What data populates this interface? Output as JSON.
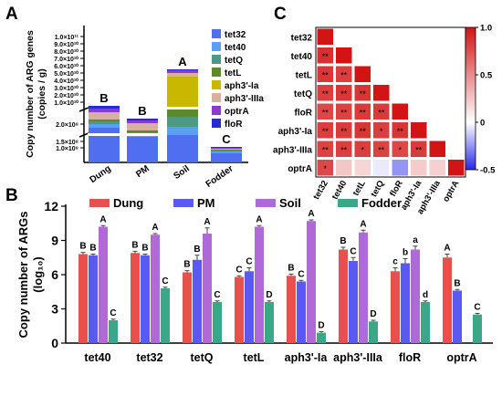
{
  "chart_data": [
    {
      "panel": "A",
      "type": "bar",
      "stacked": true,
      "ylabel_lines": [
        "Copy number of ARG genes",
        "(copies / g)"
      ],
      "categories": [
        "Dung",
        "PM",
        "Soil",
        "Fodder"
      ],
      "ytick_labels_lower": [
        "1.0×10⁸",
        "1.5×10⁸",
        "2.0×10⁸"
      ],
      "ytick_labels_upper": [
        "1.0×10¹⁰",
        "2.0×10¹⁰",
        "3.0×10¹⁰",
        "4.0×10¹⁰",
        "5.0×10¹⁰",
        "6.0×10¹⁰",
        "7.0×10¹⁰",
        "8.0×10¹⁰",
        "9.0×10¹⁰",
        "1.0×10¹¹"
      ],
      "group_letters": [
        "B",
        "B",
        "A",
        "C"
      ],
      "legend": [
        "tet32",
        "tet40",
        "tetQ",
        "tetL",
        "aph3'-Ia",
        "aph3'-IIIa",
        "optrA",
        "floR"
      ],
      "colors": [
        "#4f6ef0",
        "#5aa0f0",
        "#4c9a86",
        "#5c8a2a",
        "#c8b800",
        "#d8b0a0",
        "#8a3ad0",
        "#2a2ad0"
      ],
      "stack_heights": [
        [
          38,
          4,
          3,
          2,
          0,
          8,
          4,
          3
        ],
        [
          28,
          3,
          2,
          2,
          0,
          8,
          3,
          2
        ],
        [
          30,
          9,
          11,
          10,
          34,
          4,
          3,
          1
        ],
        [
          10,
          2,
          1,
          1,
          0,
          1,
          1,
          1
        ]
      ]
    },
    {
      "panel": "C",
      "type": "heatmap",
      "genes": [
        "tet32",
        "tet40",
        "tetL",
        "tetQ",
        "floR",
        "aph3'-Ia",
        "aph3'-IIIa",
        "optrA"
      ],
      "colorbar_ticks": [
        "1.0",
        "0.5",
        "0",
        "-0.5"
      ],
      "colorbar_range": [
        -0.5,
        1.0
      ],
      "values": [
        [
          1.0
        ],
        [
          0.88,
          1.0
        ],
        [
          0.85,
          0.82,
          1.0
        ],
        [
          0.82,
          0.85,
          0.86,
          1.0
        ],
        [
          0.78,
          0.8,
          0.84,
          0.84,
          1.0
        ],
        [
          0.82,
          0.84,
          0.86,
          0.82,
          0.86,
          1.0
        ],
        [
          0.8,
          0.82,
          0.82,
          0.8,
          0.78,
          0.84,
          1.0
        ],
        [
          0.78,
          0.24,
          0.18,
          -0.05,
          -0.25,
          0.22,
          0.2,
          1.0
        ]
      ],
      "marks": [
        [
          ""
        ],
        [
          "**",
          ""
        ],
        [
          "**",
          "**",
          ""
        ],
        [
          "**",
          "**",
          "**",
          ""
        ],
        [
          "**",
          "**",
          "**",
          "**",
          ""
        ],
        [
          "**",
          "**",
          "**",
          "*",
          "**",
          ""
        ],
        [
          "**",
          "**",
          "*",
          "**",
          "*",
          "**",
          ""
        ],
        [
          "*",
          "",
          "",
          "",
          "",
          "",
          "",
          ""
        ]
      ]
    },
    {
      "panel": "B",
      "type": "bar",
      "categories": [
        "tet40",
        "tet32",
        "tetQ",
        "tetL",
        "aph3'-Ia",
        "aph3'-IIIa",
        "floR",
        "optrA"
      ],
      "ylabel_lines": [
        "Copy number of ARGs",
        "(log₁₀)"
      ],
      "yticks": [
        0,
        3,
        6,
        9,
        12
      ],
      "ylim": [
        0,
        12
      ],
      "series": [
        {
          "name": "Dung",
          "color": "#e8504c",
          "values": [
            7.8,
            7.9,
            6.2,
            5.8,
            5.9,
            8.2,
            6.3,
            7.5
          ],
          "errors": [
            0.15,
            0.15,
            0.15,
            0.1,
            0.15,
            0.2,
            0.3,
            0.3
          ],
          "letters": [
            "B",
            "B",
            "B",
            "C",
            "B",
            "B",
            "c",
            "A"
          ]
        },
        {
          "name": "PM",
          "color": "#5a5af0",
          "values": [
            7.7,
            7.7,
            7.3,
            6.3,
            5.4,
            7.2,
            7.0,
            4.6
          ],
          "errors": [
            0.1,
            0.1,
            0.4,
            0.3,
            0.1,
            0.3,
            0.4,
            0.1
          ],
          "letters": [
            "B",
            "B",
            "B",
            "C",
            "C",
            "C",
            "b",
            "B"
          ]
        },
        {
          "name": "Soil",
          "color": "#b06ad8",
          "values": [
            10.2,
            9.5,
            9.6,
            10.2,
            10.7,
            9.7,
            8.2,
            0
          ],
          "errors": [
            0.1,
            0.1,
            0.5,
            0.1,
            0.1,
            0.2,
            0.3,
            0
          ],
          "letters": [
            "A",
            "A",
            "A",
            "A",
            "A",
            "A",
            "a",
            ""
          ]
        },
        {
          "name": "Fodder",
          "color": "#3aa888",
          "values": [
            2.0,
            4.8,
            3.6,
            3.6,
            0.9,
            1.9,
            3.6,
            2.5
          ],
          "errors": [
            0.1,
            0.1,
            0.1,
            0.1,
            0.1,
            0.1,
            0.1,
            0.1
          ],
          "letters": [
            "C",
            "C",
            "C",
            "D",
            "D",
            "D",
            "d",
            "C"
          ]
        }
      ]
    }
  ]
}
